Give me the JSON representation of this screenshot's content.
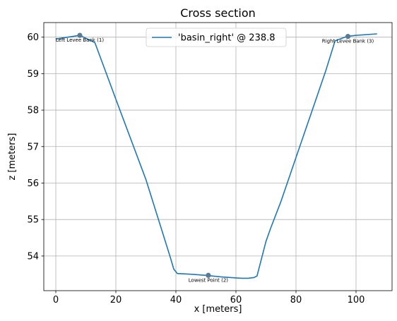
{
  "chart_data": {
    "type": "line",
    "title": "Cross section",
    "xlabel": "x [meters]",
    "ylabel": "z [meters]",
    "xlim": [
      -4,
      112
    ],
    "ylim": [
      53.05,
      60.4
    ],
    "xticks": [
      0,
      20,
      40,
      60,
      80,
      100
    ],
    "yticks": [
      54,
      55,
      56,
      57,
      58,
      59,
      60
    ],
    "grid": true,
    "legend_position": "top-center",
    "series": [
      {
        "name": "'basin_right' @ 238.8",
        "color": "#1f77b4",
        "x": [
          0,
          8,
          13,
          20,
          30,
          38,
          39.3,
          40.5,
          45,
          50,
          55,
          60,
          62,
          64,
          66,
          67,
          70,
          71.5,
          75,
          80,
          85,
          90,
          93,
          97,
          100,
          107
        ],
        "y": [
          59.95,
          60.05,
          59.85,
          58.3,
          56.1,
          54.0,
          53.64,
          53.52,
          53.5,
          53.47,
          53.43,
          53.4,
          53.39,
          53.39,
          53.41,
          53.45,
          54.4,
          54.75,
          55.5,
          56.7,
          57.9,
          59.1,
          59.9,
          60.02,
          60.05,
          60.09
        ]
      }
    ],
    "points": [
      {
        "label": "Left Levee Bank (1)",
        "x": 8,
        "y": 60.05
      },
      {
        "label": "Lowest Point (2)",
        "x": 50.8,
        "y": 53.47
      },
      {
        "label": "Right Levee Bank (3)",
        "x": 97.3,
        "y": 60.02
      }
    ]
  }
}
